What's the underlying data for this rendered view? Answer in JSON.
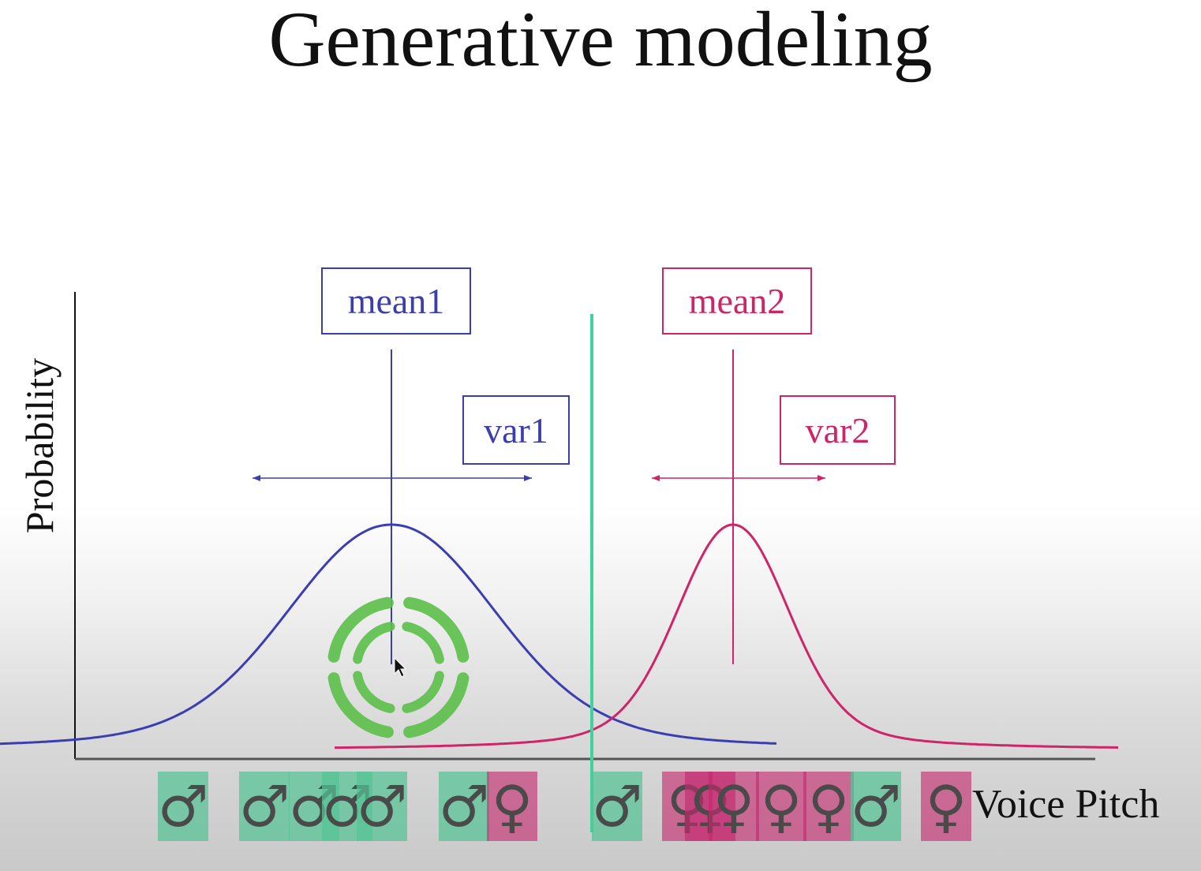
{
  "title": "Generative modeling",
  "y_axis_label": "Probability",
  "x_axis_label": "Voice Pitch",
  "params": {
    "mean1": "mean1",
    "var1": "var1",
    "mean2": "mean2",
    "var2": "var2"
  },
  "colors": {
    "class1": "#3b3eb0",
    "class2": "#cf2467",
    "decision_boundary": "#3dd39b",
    "male_token": "#54c496",
    "female_token": "#c4286e",
    "cursor_target": "#5cc04a"
  },
  "symbols": {
    "male": "♂",
    "female": "♀"
  },
  "samples": [
    {
      "class": "male"
    },
    {
      "class": "male"
    },
    {
      "class": "male"
    },
    {
      "class": "male"
    },
    {
      "class": "male"
    },
    {
      "class": "male"
    },
    {
      "class": "female"
    },
    {
      "class": "male"
    },
    {
      "class": "female"
    },
    {
      "class": "female"
    },
    {
      "class": "female"
    },
    {
      "class": "female"
    },
    {
      "class": "female"
    },
    {
      "class": "male"
    },
    {
      "class": "female"
    }
  ],
  "icons": {
    "cursor": "loading-spinner-icon",
    "pointer": "mouse-pointer-icon"
  }
}
